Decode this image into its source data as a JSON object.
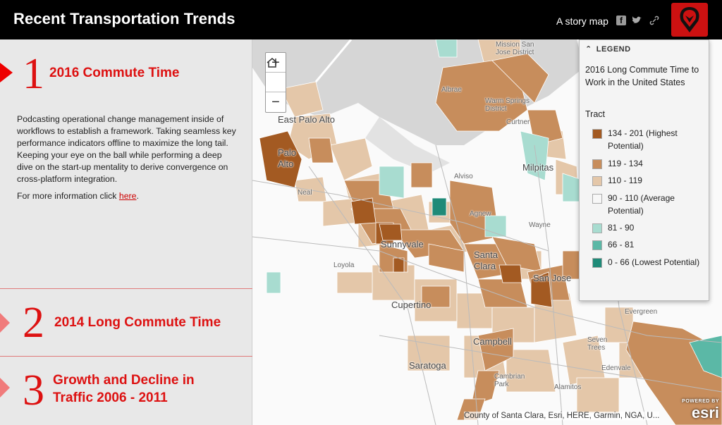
{
  "header": {
    "title": "Recent Transportation Trends",
    "storymap_label": "A story map",
    "share_icons": [
      "facebook-icon",
      "twitter-icon",
      "link-icon"
    ],
    "logo_icon": "cobra-logo-icon",
    "background_color": "#000000"
  },
  "sections": [
    {
      "number": "1",
      "title": "2016 Commute Time",
      "active": true,
      "body": "Podcasting operational change management inside of workflows to establish a framework. Taking seamless key performance indicators offline to maximize the long tail. Keeping your eye on the ball while performing a deep dive on the start-up mentality to derive convergence on cross-platform integration.",
      "more_prefix": "For more information click ",
      "more_link": "here",
      "more_suffix": "."
    },
    {
      "number": "2",
      "title": "2014 Long Commute Time",
      "active": false
    },
    {
      "number": "3",
      "title": "Growth and Decline in Traffic 2006 - 2011",
      "active": false
    }
  ],
  "accent_color": "#dd1111",
  "map": {
    "zoom_in": "+",
    "home_icon": "home-icon",
    "zoom_out": "−",
    "places": [
      {
        "label": "Mission San Jose District"
      },
      {
        "label": "Albrae"
      },
      {
        "label": "Warm Springs District"
      },
      {
        "label": "Curtner"
      },
      {
        "label": "East Palo Alto"
      },
      {
        "label": "Palo Alto"
      },
      {
        "label": "Neal"
      },
      {
        "label": "Alviso"
      },
      {
        "label": "Milpitas"
      },
      {
        "label": "Agnew"
      },
      {
        "label": "Wayne"
      },
      {
        "label": "Sunnyvale"
      },
      {
        "label": "Loyola"
      },
      {
        "label": "Santa Clara"
      },
      {
        "label": "San Jose"
      },
      {
        "label": "Cupertino"
      },
      {
        "label": "Evergreen"
      },
      {
        "label": "Campbell"
      },
      {
        "label": "Seven Trees"
      },
      {
        "label": "Saratoga"
      },
      {
        "label": "Cambrian Park"
      },
      {
        "label": "Edenvale"
      },
      {
        "label": "Alamitos"
      }
    ],
    "attribution": "County of Santa Clara, Esri, HERE, Garmin, NGA, U...",
    "esri_powered": "POWERED BY",
    "esri_logo": "esri"
  },
  "legend": {
    "header": "LEGEND",
    "collapse_icon": "chevron-up-icon",
    "title": "2016 Long Commute Time to Work in the United States",
    "layer": "Tract",
    "items": [
      {
        "label": "134 - 201 (Highest Potential)",
        "color": "#a35a22"
      },
      {
        "label": "119 - 134",
        "color": "#c78d5c"
      },
      {
        "label": "110 - 119",
        "color": "#e4c7a9"
      },
      {
        "label": "90 - 110 (Average Potential)",
        "color": "#f7f7f7"
      },
      {
        "label": "81 - 90",
        "color": "#a8dcd0"
      },
      {
        "label": "66 - 81",
        "color": "#5bb8a6"
      },
      {
        "label": "0 - 66 (Lowest Potential)",
        "color": "#1f8a78"
      }
    ]
  }
}
